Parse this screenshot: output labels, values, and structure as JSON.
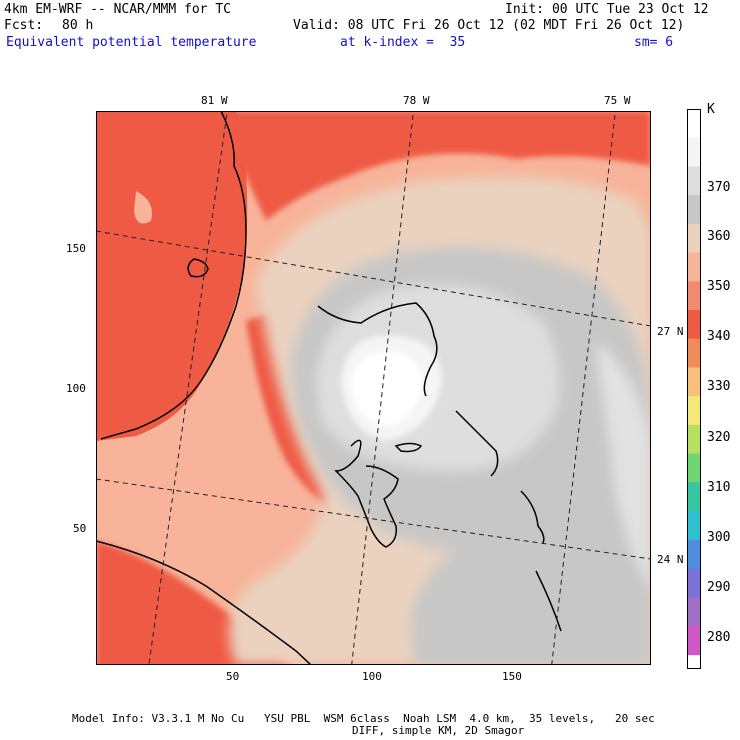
{
  "header": {
    "model": "4km EM-WRF -- NCAR/MMM for TC",
    "init": "Init: 00 UTC Tue 23 Oct 12",
    "fcst_label": "Fcst:",
    "fcst_value": "80 h",
    "valid": "Valid: 08 UTC Fri 26 Oct 12 (02 MDT Fri 26 Oct 12)",
    "field": "Equivalent potential temperature",
    "kindex": "at k-index =  35",
    "sm": "sm= 6"
  },
  "map": {
    "top_labels": [
      "81 W",
      "78 W",
      "75 W"
    ],
    "right_labels": [
      "27 N",
      "24 N"
    ],
    "left_ticks": [
      "150",
      "100",
      "50"
    ],
    "bottom_ticks": [
      "50",
      "100",
      "150"
    ]
  },
  "colorbar": {
    "unit": "K",
    "labels": [
      "370",
      "360",
      "350",
      "340",
      "330",
      "320",
      "310",
      "300",
      "290",
      "280"
    ],
    "colors": [
      "#ffffff",
      "#f5f5f5",
      "#dedede",
      "#c7c7c7",
      "#ead2bf",
      "#f7b49a",
      "#f28b6f",
      "#ef5a45",
      "#f08c5a",
      "#f9c07a",
      "#f4e87a",
      "#b6e05d",
      "#6fd672",
      "#36c7a0",
      "#2cc1d1",
      "#4f8de0",
      "#7a72d6",
      "#a06fc8",
      "#cf58c6"
    ]
  },
  "footer": {
    "line1": "Model Info: V3.3.1 M No Cu   YSU PBL  WSM 6class  Noah LSM  4.0 km,  35 levels,   20 sec",
    "line2": "DIFF, simple KM, 2D Smagor"
  }
}
